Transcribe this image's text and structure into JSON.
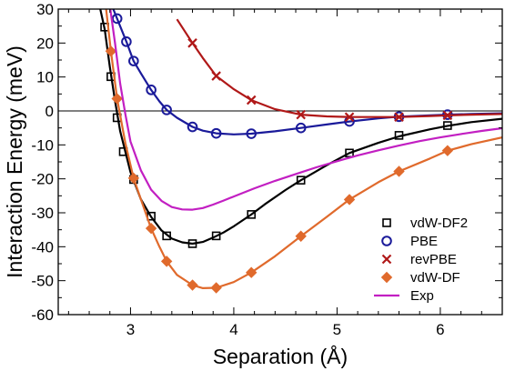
{
  "chart_data": {
    "type": "line",
    "xlabel": "Separation (Å)",
    "ylabel": "Interaction Energy (meV)",
    "xlim": [
      2.3,
      6.6
    ],
    "ylim": [
      -60,
      30
    ],
    "x_ticks": [
      3,
      4,
      5,
      6
    ],
    "y_ticks": [
      -60,
      -50,
      -40,
      -30,
      -20,
      -10,
      0,
      10,
      20,
      30
    ],
    "grid": false,
    "zero_line": true,
    "legend_position": "bottom-right",
    "series": [
      {
        "name": "vdW-DF2",
        "color": "#000000",
        "marker": "square",
        "points": [
          [
            2.75,
            24.7
          ],
          [
            2.81,
            10.1
          ],
          [
            2.87,
            -2.0
          ],
          [
            2.93,
            -12.0
          ],
          [
            3.03,
            -20.2
          ],
          [
            3.2,
            -31.0
          ],
          [
            3.35,
            -36.8
          ],
          [
            3.6,
            -39.1
          ],
          [
            3.83,
            -36.8
          ],
          [
            4.17,
            -30.5
          ],
          [
            4.65,
            -20.4
          ],
          [
            5.12,
            -12.4
          ],
          [
            5.6,
            -7.2
          ],
          [
            6.07,
            -4.3
          ]
        ],
        "curve": [
          [
            2.7,
            31
          ],
          [
            2.75,
            24
          ],
          [
            2.8,
            13
          ],
          [
            2.85,
            3
          ],
          [
            2.9,
            -6
          ],
          [
            3.0,
            -18
          ],
          [
            3.1,
            -26
          ],
          [
            3.2,
            -31.2
          ],
          [
            3.3,
            -35.2
          ],
          [
            3.4,
            -37.6
          ],
          [
            3.5,
            -38.7
          ],
          [
            3.6,
            -39.1
          ],
          [
            3.7,
            -38.6
          ],
          [
            3.8,
            -37.3
          ],
          [
            3.9,
            -35.8
          ],
          [
            4.0,
            -34.0
          ],
          [
            4.17,
            -30.5
          ],
          [
            4.3,
            -27.5
          ],
          [
            4.5,
            -23.3
          ],
          [
            4.65,
            -20.4
          ],
          [
            4.9,
            -16.0
          ],
          [
            5.12,
            -12.4
          ],
          [
            5.4,
            -9.4
          ],
          [
            5.6,
            -7.5
          ],
          [
            5.9,
            -5.4
          ],
          [
            6.07,
            -4.4
          ],
          [
            6.3,
            -3.3
          ],
          [
            6.6,
            -2.3
          ]
        ]
      },
      {
        "name": "PBE",
        "color": "#1a1a9a",
        "marker": "circle",
        "points": [
          [
            2.87,
            27.2
          ],
          [
            2.96,
            20.4
          ],
          [
            3.03,
            14.7
          ],
          [
            3.2,
            6.2
          ],
          [
            3.35,
            0.3
          ],
          [
            3.6,
            -4.7
          ],
          [
            3.83,
            -6.6
          ],
          [
            4.17,
            -6.7
          ],
          [
            4.65,
            -5.0
          ],
          [
            5.12,
            -3.1
          ],
          [
            5.6,
            -1.7
          ],
          [
            6.07,
            -1.1
          ]
        ],
        "curve": [
          [
            2.82,
            31
          ],
          [
            2.87,
            27.2
          ],
          [
            2.96,
            20.4
          ],
          [
            3.03,
            14.7
          ],
          [
            3.1,
            11.1
          ],
          [
            3.2,
            6.2
          ],
          [
            3.28,
            2.8
          ],
          [
            3.35,
            0.3
          ],
          [
            3.45,
            -2.0
          ],
          [
            3.6,
            -4.7
          ],
          [
            3.7,
            -5.8
          ],
          [
            3.83,
            -6.6
          ],
          [
            4.0,
            -6.9
          ],
          [
            4.17,
            -6.7
          ],
          [
            4.4,
            -6.0
          ],
          [
            4.65,
            -5.0
          ],
          [
            4.9,
            -4.0
          ],
          [
            5.12,
            -3.1
          ],
          [
            5.4,
            -2.2
          ],
          [
            5.6,
            -1.7
          ],
          [
            5.9,
            -1.3
          ],
          [
            6.07,
            -1.1
          ],
          [
            6.3,
            -0.9
          ],
          [
            6.6,
            -0.7
          ]
        ]
      },
      {
        "name": "revPBE",
        "color": "#b01818",
        "marker": "x",
        "points": [
          [
            3.6,
            20.0
          ],
          [
            3.83,
            10.3
          ],
          [
            4.17,
            3.2
          ],
          [
            4.65,
            -1.1
          ],
          [
            5.12,
            -1.8
          ],
          [
            5.6,
            -1.8
          ],
          [
            6.07,
            -1.3
          ]
        ],
        "curve": [
          [
            3.45,
            27
          ],
          [
            3.6,
            20.0
          ],
          [
            3.7,
            15.6
          ],
          [
            3.83,
            10.3
          ],
          [
            4.0,
            6.4
          ],
          [
            4.17,
            3.2
          ],
          [
            4.4,
            0.5
          ],
          [
            4.65,
            -1.1
          ],
          [
            4.9,
            -1.6
          ],
          [
            5.12,
            -1.8
          ],
          [
            5.4,
            -1.8
          ],
          [
            5.6,
            -1.8
          ],
          [
            5.9,
            -1.5
          ],
          [
            6.07,
            -1.3
          ],
          [
            6.3,
            -1.1
          ],
          [
            6.6,
            -0.9
          ]
        ]
      },
      {
        "name": "vdW-DF",
        "color": "#e06a2c",
        "marker": "diamond",
        "points": [
          [
            2.81,
            17.6
          ],
          [
            2.87,
            3.6
          ],
          [
            3.03,
            -19.8
          ],
          [
            3.2,
            -34.6
          ],
          [
            3.35,
            -44.3
          ],
          [
            3.6,
            -51.3
          ],
          [
            3.83,
            -52.1
          ],
          [
            4.17,
            -47.6
          ],
          [
            4.65,
            -36.9
          ],
          [
            5.12,
            -26.1
          ],
          [
            5.6,
            -17.8
          ],
          [
            6.07,
            -11.7
          ]
        ],
        "curve": [
          [
            2.76,
            31
          ],
          [
            2.81,
            17.6
          ],
          [
            2.87,
            3.6
          ],
          [
            2.95,
            -9.5
          ],
          [
            3.03,
            -19.8
          ],
          [
            3.1,
            -26.0
          ],
          [
            3.2,
            -34.6
          ],
          [
            3.28,
            -40.0
          ],
          [
            3.35,
            -44.3
          ],
          [
            3.45,
            -48.3
          ],
          [
            3.6,
            -51.3
          ],
          [
            3.7,
            -52.2
          ],
          [
            3.83,
            -52.1
          ],
          [
            4.0,
            -50.4
          ],
          [
            4.17,
            -47.6
          ],
          [
            4.4,
            -42.8
          ],
          [
            4.65,
            -36.9
          ],
          [
            4.9,
            -31.2
          ],
          [
            5.12,
            -26.1
          ],
          [
            5.4,
            -21.0
          ],
          [
            5.6,
            -17.8
          ],
          [
            5.9,
            -14.0
          ],
          [
            6.07,
            -11.7
          ],
          [
            6.3,
            -9.8
          ],
          [
            6.6,
            -7.8
          ]
        ]
      },
      {
        "name": "Exp",
        "color": "#c21fc2",
        "marker": "none",
        "curve": [
          [
            2.8,
            31
          ],
          [
            2.85,
            20
          ],
          [
            2.9,
            8
          ],
          [
            2.95,
            -1
          ],
          [
            3.0,
            -9
          ],
          [
            3.1,
            -17.5
          ],
          [
            3.2,
            -23.2
          ],
          [
            3.3,
            -26.5
          ],
          [
            3.4,
            -28.3
          ],
          [
            3.5,
            -29.0
          ],
          [
            3.6,
            -29.1
          ],
          [
            3.7,
            -28.6
          ],
          [
            3.8,
            -27.6
          ],
          [
            3.9,
            -26.4
          ],
          [
            4.0,
            -25.2
          ],
          [
            4.2,
            -22.8
          ],
          [
            4.4,
            -20.6
          ],
          [
            4.6,
            -18.6
          ],
          [
            4.8,
            -16.6
          ],
          [
            5.0,
            -14.8
          ],
          [
            5.2,
            -13.1
          ],
          [
            5.4,
            -11.6
          ],
          [
            5.6,
            -10.2
          ],
          [
            5.8,
            -8.9
          ],
          [
            6.0,
            -7.8
          ],
          [
            6.2,
            -6.8
          ],
          [
            6.4,
            -5.9
          ],
          [
            6.6,
            -5.1
          ]
        ]
      }
    ]
  }
}
